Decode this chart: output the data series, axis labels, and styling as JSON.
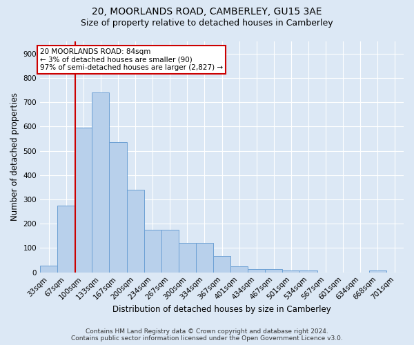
{
  "title1": "20, MOORLANDS ROAD, CAMBERLEY, GU15 3AE",
  "title2": "Size of property relative to detached houses in Camberley",
  "xlabel": "Distribution of detached houses by size in Camberley",
  "ylabel": "Number of detached properties",
  "categories": [
    "33sqm",
    "67sqm",
    "100sqm",
    "133sqm",
    "167sqm",
    "200sqm",
    "234sqm",
    "267sqm",
    "300sqm",
    "334sqm",
    "367sqm",
    "401sqm",
    "434sqm",
    "467sqm",
    "501sqm",
    "534sqm",
    "567sqm",
    "601sqm",
    "634sqm",
    "668sqm",
    "701sqm"
  ],
  "values": [
    27,
    275,
    595,
    740,
    537,
    340,
    175,
    175,
    120,
    120,
    67,
    25,
    14,
    14,
    8,
    8,
    0,
    0,
    0,
    8,
    0
  ],
  "bar_color": "#b8d0eb",
  "bar_edge_color": "#6ca0d4",
  "background_color": "#dce8f5",
  "grid_color": "#ffffff",
  "red_line_x": 1.53,
  "annotation_title": "20 MOORLANDS ROAD: 84sqm",
  "annotation_line1": "← 3% of detached houses are smaller (90)",
  "annotation_line2": "97% of semi-detached houses are larger (2,827) →",
  "annotation_box_color": "#ffffff",
  "annotation_box_edge": "#cc0000",
  "ylim": [
    0,
    950
  ],
  "yticks": [
    0,
    100,
    200,
    300,
    400,
    500,
    600,
    700,
    800,
    900
  ],
  "footer1": "Contains HM Land Registry data © Crown copyright and database right 2024.",
  "footer2": "Contains public sector information licensed under the Open Government Licence v3.0.",
  "title_fontsize": 10,
  "subtitle_fontsize": 9,
  "axis_label_fontsize": 8.5,
  "tick_fontsize": 7.5,
  "annotation_fontsize": 7.5,
  "footer_fontsize": 6.5
}
